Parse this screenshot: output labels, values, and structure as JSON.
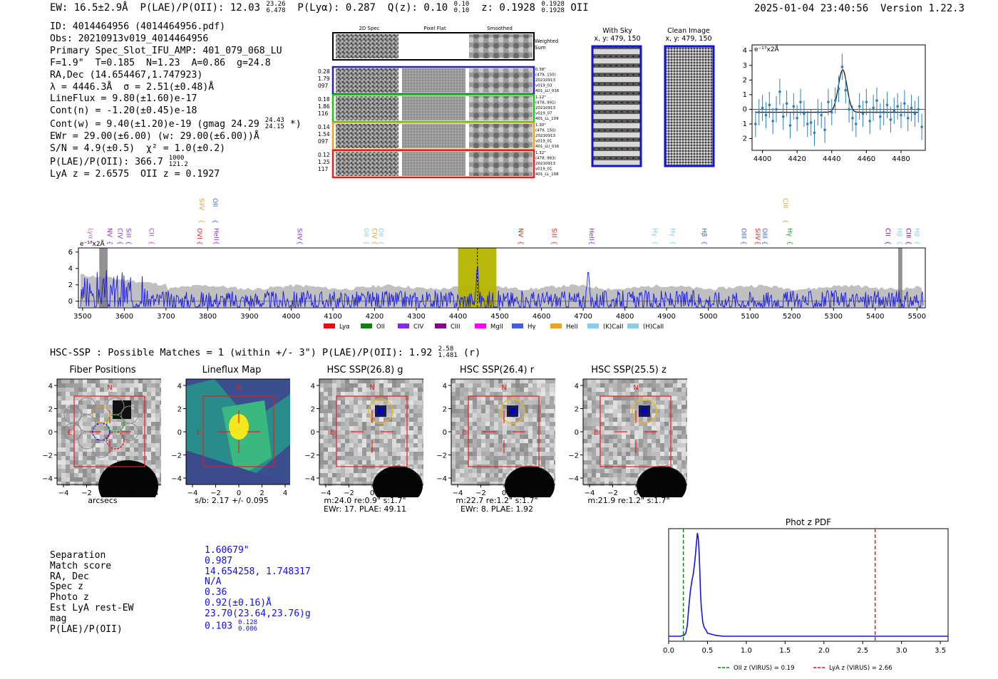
{
  "header": {
    "ew": "EW: 16.5±2.9Å",
    "plae_label": "P(LAE)/P(OII): 12.03",
    "plae_hi": "23.26",
    "plae_lo": "6.478",
    "plya": "P(Lyα): 0.287",
    "qz_label": "Q(z): 0.10",
    "qz_hi": "0.10",
    "qz_lo": "0.10",
    "z_label": "z: 0.1928",
    "z_hi": "0.1928",
    "z_lo": "0.1928",
    "z_line": "OII",
    "timestamp": "2025-01-04 23:40:56",
    "version": "Version 1.22.3"
  },
  "info": {
    "id": "ID: 4014464956 (4014464956.pdf)",
    "obs": "Obs: 20210913v019_4014464956",
    "primary": "Primary Spec_Slot_IFU_AMP: 401_079_068_LU",
    "params": "F=1.9\"  T=0.185  N=1.23  A=0.86  g=24.8",
    "radec": "RA,Dec (14.654467,1.747923)",
    "lambda": "λ = 4446.3Å  σ = 2.51(±0.48)Å",
    "lineflux": "LineFlux = 9.80(±1.60)e-17",
    "contn": "Cont(n) = -1.20(±0.45)e-18",
    "contw": "Cont(w) = 9.40(±1.20)e-19 (gmag 24.29",
    "contw_hi": "24.43",
    "contw_lo": "24.15",
    "contw_end": "*)",
    "ewr": "EWr = 29.00(±6.00) (w: 29.00(±6.00))Å",
    "sn": "S/N = 4.9(±0.5)  χ² = 1.0(±0.2)",
    "plae": "P(LAE)/P(OII): 366.7",
    "plae_hi": "1000",
    "plae_lo": "121.2",
    "lyaz": "LyA z = 2.6575  OII z = 0.1927"
  },
  "spec_panel": {
    "col_titles": [
      "2D Spec",
      "Pixel Flat",
      "Smoothed"
    ],
    "weighted_sum": [
      "Weighted",
      "Sum"
    ],
    "rows": [
      {
        "left": [
          "0.28",
          "1.79",
          "097"
        ],
        "right": [
          "0.38\"",
          "(479, 150)",
          "20210913",
          "v019_03",
          "401_LU_016"
        ],
        "color": "#2020c0"
      },
      {
        "left": [
          "0.18",
          "1.86",
          "116"
        ],
        "right": [
          "1.12\"",
          "(478, 991)",
          "20210913",
          "v019_07",
          "401_LL_109"
        ],
        "color": "#20c020"
      },
      {
        "left": [
          "0.14",
          "1.54",
          "097"
        ],
        "right": [
          "1.30\"",
          "(479, 150)",
          "20210913",
          "v019_01",
          "401_LU_016"
        ],
        "color": "#e8a020"
      },
      {
        "left": [
          "0.12",
          "1.25",
          "117"
        ],
        "right": [
          "1.32\"",
          "(478, 983)",
          "20210913",
          "v019_01",
          "401_LL_108"
        ],
        "color": "#e02020"
      }
    ]
  },
  "sky_panels": {
    "with_sky_title": "With Sky",
    "with_sky_coord": "x, y: 479, 150",
    "clean_title": "Clean Image",
    "clean_coord": "x, y: 479, 150"
  },
  "zoom_chart": {
    "unit_label": "e⁻¹⁷x2Å"
  },
  "chart_data": [
    {
      "type": "scatter",
      "title": "",
      "unit_label": "e⁻¹⁷x2Å",
      "xlim": [
        4394,
        4494
      ],
      "ylim": [
        -2.8,
        4.4
      ],
      "xticks": [
        4400,
        4420,
        4440,
        4460,
        4480
      ],
      "yticks": [
        -2,
        -1,
        0,
        1,
        2,
        3,
        4
      ],
      "x": [
        4396,
        4398,
        4400,
        4402,
        4404,
        4406,
        4408,
        4410,
        4412,
        4414,
        4416,
        4418,
        4420,
        4422,
        4424,
        4426,
        4428,
        4430,
        4432,
        4434,
        4436,
        4438,
        4440,
        4442,
        4444,
        4446,
        4448,
        4450,
        4452,
        4454,
        4456,
        4458,
        4460,
        4462,
        4464,
        4466,
        4468,
        4470,
        4472,
        4474,
        4476,
        4478,
        4480,
        4482,
        4484,
        4486,
        4488,
        4490,
        4492
      ],
      "y": [
        -1.0,
        -0.2,
        0.1,
        -0.4,
        0.3,
        -0.8,
        0.0,
        1.2,
        -0.5,
        0.4,
        -1.1,
        0.2,
        -0.6,
        0.5,
        -0.3,
        -1.0,
        -0.9,
        -1.6,
        -0.2,
        -0.4,
        -1.4,
        0.5,
        -0.2,
        0.6,
        1.4,
        2.9,
        1.3,
        0.0,
        -0.6,
        -1.0,
        0.2,
        -0.3,
        0.5,
        -0.8,
        0.1,
        0.6,
        -0.5,
        -0.2,
        0.3,
        -0.7,
        -0.1,
        0.2,
        -0.4,
        0.4,
        -0.6,
        0.1,
        -0.3,
        0.0,
        -1.2
      ],
      "err": 0.9,
      "fit": {
        "center": 4446.3,
        "sigma": 2.51,
        "amp": 2.9,
        "base": -0.2
      }
    },
    {
      "type": "line",
      "title": "",
      "unit_label": "e⁻¹⁷x2Å",
      "xlim": [
        3490,
        5520
      ],
      "ylim": [
        -0.8,
        6.5
      ],
      "xticks": [
        3500,
        3600,
        3700,
        3800,
        3900,
        4000,
        4100,
        4200,
        4300,
        4400,
        4500,
        4600,
        4700,
        4800,
        4900,
        5000,
        5100,
        5200,
        5300,
        5400,
        5500
      ],
      "yticks": [
        0,
        2,
        4,
        6
      ],
      "highlight_range": [
        4400,
        4492
      ],
      "line_wavelength": 4446.3,
      "gray_bands": [
        [
          3540,
          3560
        ],
        [
          5455,
          5465
        ]
      ],
      "line_labels": [
        {
          "name": "Lyα",
          "x": 3510,
          "color": "#c070d0",
          "row": 1
        },
        {
          "name": "NV",
          "x": 3555,
          "color": "#8a2be2",
          "row": 1
        },
        {
          "name": "CIV",
          "x": 3580,
          "color": "#8a2be2",
          "row": 1
        },
        {
          "name": "SiII",
          "x": 3600,
          "color": "#8a2be2",
          "row": 1
        },
        {
          "name": "CII",
          "x": 3655,
          "color": "#d030d0",
          "row": 1
        },
        {
          "name": "SiIV",
          "x": 3775,
          "color": "#e8a020",
          "row": 0
        },
        {
          "name": "OVI",
          "x": 3770,
          "color": "#e02020",
          "row": 1
        },
        {
          "name": "HeII",
          "x": 3810,
          "color": "#8a2be2",
          "row": 1
        },
        {
          "name": "OII",
          "x": 3808,
          "color": "#4060e0",
          "row": 0
        },
        {
          "name": "SiIV",
          "x": 4010,
          "color": "#8a2be2",
          "row": 1
        },
        {
          "name": "OII",
          "x": 4170,
          "color": "#87ceeb",
          "row": 1
        },
        {
          "name": "CIV",
          "x": 4190,
          "color": "#e8a020",
          "row": 1
        },
        {
          "name": "OII",
          "x": 4205,
          "color": "#87ceeb",
          "row": 1
        },
        {
          "name": "NV",
          "x": 4540,
          "color": "#e02020",
          "row": 1
        },
        {
          "name": "SiII",
          "x": 4620,
          "color": "#e02020",
          "row": 1
        },
        {
          "name": "HeII",
          "x": 4710,
          "color": "#8a2be2",
          "row": 1
        },
        {
          "name": "Hγ",
          "x": 4862,
          "color": "#87ceeb",
          "row": 1
        },
        {
          "name": "Hγ",
          "x": 4905,
          "color": "#87ceeb",
          "row": 1
        },
        {
          "name": "Hβ",
          "x": 4980,
          "color": "#4060e0",
          "row": 1
        },
        {
          "name": "OIII",
          "x": 5075,
          "color": "#4060e0",
          "row": 1
        },
        {
          "name": "SiIV",
          "x": 5108,
          "color": "#e02020",
          "row": 1
        },
        {
          "name": "OIII",
          "x": 5125,
          "color": "#4060e0",
          "row": 1
        },
        {
          "name": "CIII",
          "x": 5175,
          "color": "#e8a020",
          "row": 0
        },
        {
          "name": "Hγ",
          "x": 5185,
          "color": "#20a020",
          "row": 1
        },
        {
          "name": "CII",
          "x": 5420,
          "color": "#8b008b",
          "row": 1
        },
        {
          "name": "Hβ",
          "x": 5448,
          "color": "#87ceeb",
          "row": 1
        },
        {
          "name": "CIII",
          "x": 5470,
          "color": "#8b008b",
          "row": 1
        },
        {
          "name": "Hβ",
          "x": 5490,
          "color": "#87ceeb",
          "row": 1
        }
      ],
      "legend": [
        {
          "name": "Lyα",
          "color": "#e01010"
        },
        {
          "name": "OII",
          "color": "#108010"
        },
        {
          "name": "CIV",
          "color": "#8a2be2"
        },
        {
          "name": "CIII",
          "color": "#8b008b"
        },
        {
          "name": "MgII",
          "color": "#ff00ff"
        },
        {
          "name": "Hγ",
          "color": "#4060e0"
        },
        {
          "name": "HeII",
          "color": "#f0a020"
        },
        {
          "name": "(K)CaII",
          "color": "#87ceeb"
        },
        {
          "name": "(H)CaII",
          "color": "#87ceeb"
        }
      ]
    },
    {
      "type": "line",
      "title": "Phot z PDF",
      "xlim": [
        0.0,
        3.6
      ],
      "xticks": [
        0.0,
        0.5,
        1.0,
        1.5,
        2.0,
        2.5,
        3.0,
        3.5
      ],
      "oii_z": 0.19,
      "lya_z": 2.66,
      "x": [
        0.0,
        0.1,
        0.15,
        0.2,
        0.22,
        0.24,
        0.26,
        0.28,
        0.3,
        0.32,
        0.34,
        0.36,
        0.37,
        0.38,
        0.39,
        0.4,
        0.41,
        0.42,
        0.44,
        0.46,
        0.48,
        0.5,
        0.55,
        0.6,
        0.7,
        1.0,
        2.0,
        3.6
      ],
      "y": [
        0.02,
        0.02,
        0.02,
        0.03,
        0.05,
        0.12,
        0.3,
        0.45,
        0.55,
        0.62,
        0.75,
        0.92,
        1.0,
        0.96,
        0.85,
        0.66,
        0.45,
        0.3,
        0.15,
        0.1,
        0.08,
        0.05,
        0.04,
        0.03,
        0.02,
        0.02,
        0.02,
        0.02
      ],
      "legend": [
        {
          "name": "OII z (VIRUS) = 0.19",
          "color": "#108010"
        },
        {
          "name": "LyA z (VIRUS) = 2.66",
          "color": "#e01010"
        }
      ]
    }
  ],
  "hsc": {
    "header_main": "HSC-SSP : Possible Matches = 1 (within +/- 3\")  P(LAE)/P(OII): 1.92",
    "header_hi": "2.58",
    "header_lo": "1.481",
    "header_end": "(r)",
    "axis_ticks": [
      "4",
      "2",
      "0",
      "−2",
      "−4"
    ],
    "x_ticks": [
      "−4",
      "−2",
      "0",
      "2",
      "4"
    ],
    "north": "N",
    "east": "E",
    "cutouts": [
      {
        "title": "Fiber Positions",
        "caption": [
          "arcsecs"
        ]
      },
      {
        "title": "Lineflux Map",
        "caption": [
          "s/b: 2.17 +/- 0.095"
        ]
      },
      {
        "title": "HSC SSP(26.8) g",
        "caption": [
          "m:24.0  re:0.9\"  s:1.7\"",
          "EWr: 17. PLAE: 49.11"
        ]
      },
      {
        "title": "HSC SSP(26.4) r",
        "caption": [
          "m:22.7  re:1.2\"  s:1.7\"",
          "EWr: 8. PLAE: 1.92"
        ]
      },
      {
        "title": "HSC SSP(25.5) z",
        "caption": [
          "m:21.9  re:1.2\"  s:1.7\""
        ]
      }
    ]
  },
  "match": {
    "labels": [
      "Separation",
      "Match score",
      "RA, Dec",
      "Spec z",
      "Photo z",
      "Est LyA rest-EW",
      "mag",
      "P(LAE)/P(OII)"
    ],
    "values": [
      "1.60679\"",
      "0.987",
      "14.654258, 1.748317",
      "N/A",
      "0.36",
      "0.92(±0.16)Å",
      "23.70(23.64,23.76)g"
    ],
    "plae": "0.103",
    "plae_hi": "0.128",
    "plae_lo": "0.086"
  }
}
